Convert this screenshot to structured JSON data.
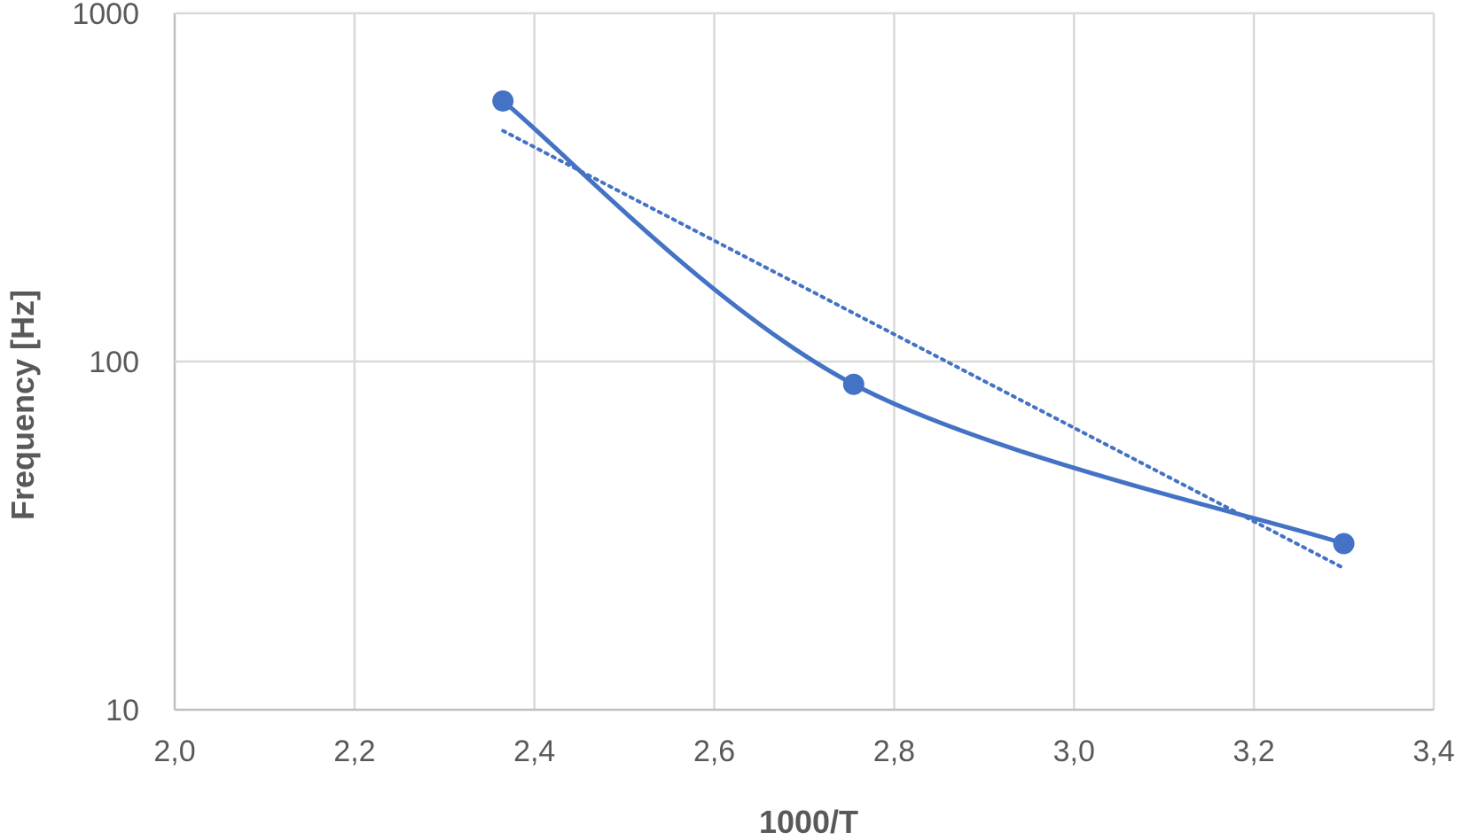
{
  "chart_data": {
    "type": "scatter",
    "title": "",
    "xlabel": "1000/T",
    "ylabel": "Frequency [Hz]",
    "xlim": [
      2.0,
      3.4
    ],
    "ylim": [
      10,
      1000
    ],
    "y_scale": "log",
    "grid": true,
    "legend": "none",
    "x_ticks": [
      2.0,
      2.2,
      2.4,
      2.6,
      2.8,
      3.0,
      3.2,
      3.4
    ],
    "x_tick_labels": [
      "2,0",
      "2,2",
      "2,4",
      "2,6",
      "2,8",
      "3,0",
      "3,2",
      "3,4"
    ],
    "y_ticks": [
      10,
      100,
      1000
    ],
    "y_tick_labels": [
      "10",
      "100",
      "1000"
    ],
    "series": [
      {
        "style": "smooth line with markers",
        "color": "#4472C4",
        "x": [
          2.365,
          2.755,
          3.3
        ],
        "y": [
          560,
          86,
          30
        ]
      }
    ],
    "trendline": {
      "style": "dotted",
      "color": "#4472C4",
      "type": "exponential",
      "x": [
        2.365,
        3.3
      ],
      "y": [
        460,
        25.5
      ]
    }
  }
}
